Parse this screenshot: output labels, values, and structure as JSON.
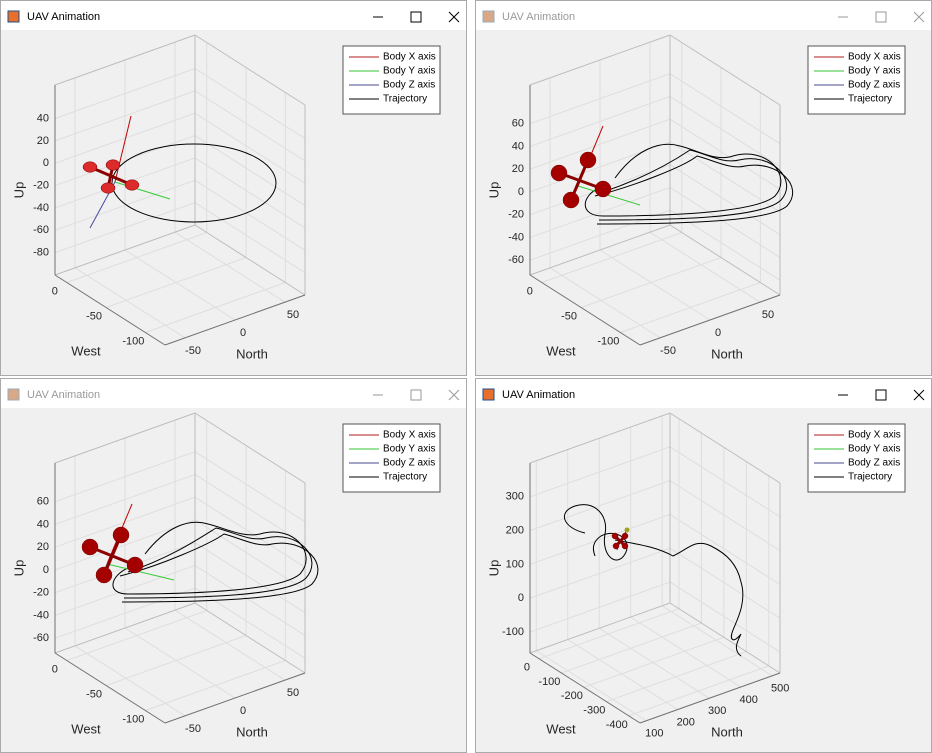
{
  "windows": [
    {
      "title": "UAV Animation",
      "active": true,
      "legend": [
        "Body X axis",
        "Body Y axis",
        "Body Z axis",
        "Trajectory"
      ],
      "axes": {
        "xlabel": "West",
        "ylabel": "North",
        "zlabel": "Up",
        "xlim": [
          -125,
          15
        ],
        "xticks": [
          -100,
          -50,
          0
        ],
        "ylim": [
          -70,
          70
        ],
        "yticks": [
          -50,
          0,
          50
        ],
        "zlim": [
          -100,
          70
        ],
        "zticks": [
          -80,
          -60,
          -40,
          -20,
          0,
          20,
          40
        ]
      }
    },
    {
      "title": "UAV Animation",
      "active": false,
      "legend": [
        "Body X axis",
        "Body Y axis",
        "Body Z axis",
        "Trajectory"
      ],
      "axes": {
        "xlabel": "West",
        "ylabel": "North",
        "zlabel": "Up",
        "xlim": [
          -125,
          15
        ],
        "xticks": [
          -100,
          -50,
          0
        ],
        "ylim": [
          -70,
          70
        ],
        "yticks": [
          -50,
          0,
          50
        ],
        "zlim": [
          -73,
          94
        ],
        "zticks": [
          -60,
          -40,
          -20,
          0,
          20,
          40,
          60
        ]
      }
    },
    {
      "title": "UAV Animation",
      "active": false,
      "legend": [
        "Body X axis",
        "Body Y axis",
        "Body Z axis",
        "Trajectory"
      ],
      "axes": {
        "xlabel": "West",
        "ylabel": "North",
        "zlabel": "Up",
        "xlim": [
          -125,
          15
        ],
        "xticks": [
          -100,
          -50,
          0
        ],
        "ylim": [
          -70,
          70
        ],
        "yticks": [
          -50,
          0,
          50
        ],
        "zlim": [
          -73,
          94
        ],
        "zticks": [
          -60,
          -40,
          -20,
          0,
          20,
          40,
          60
        ]
      }
    },
    {
      "title": "UAV Animation",
      "active": true,
      "legend": [
        "Body X axis",
        "Body Y axis",
        "Body Z axis",
        "Trajectory"
      ],
      "axes": {
        "xlabel": "West",
        "ylabel": "North",
        "zlabel": "Up",
        "xlim": [
          -450,
          40
        ],
        "xticks": [
          -400,
          -300,
          -200,
          -100,
          0
        ],
        "ylim": [
          80,
          525
        ],
        "yticks": [
          100,
          200,
          300,
          400,
          500
        ],
        "zlim": [
          -162,
          400
        ],
        "zticks": [
          -100,
          0,
          100,
          200,
          300
        ]
      }
    }
  ]
}
